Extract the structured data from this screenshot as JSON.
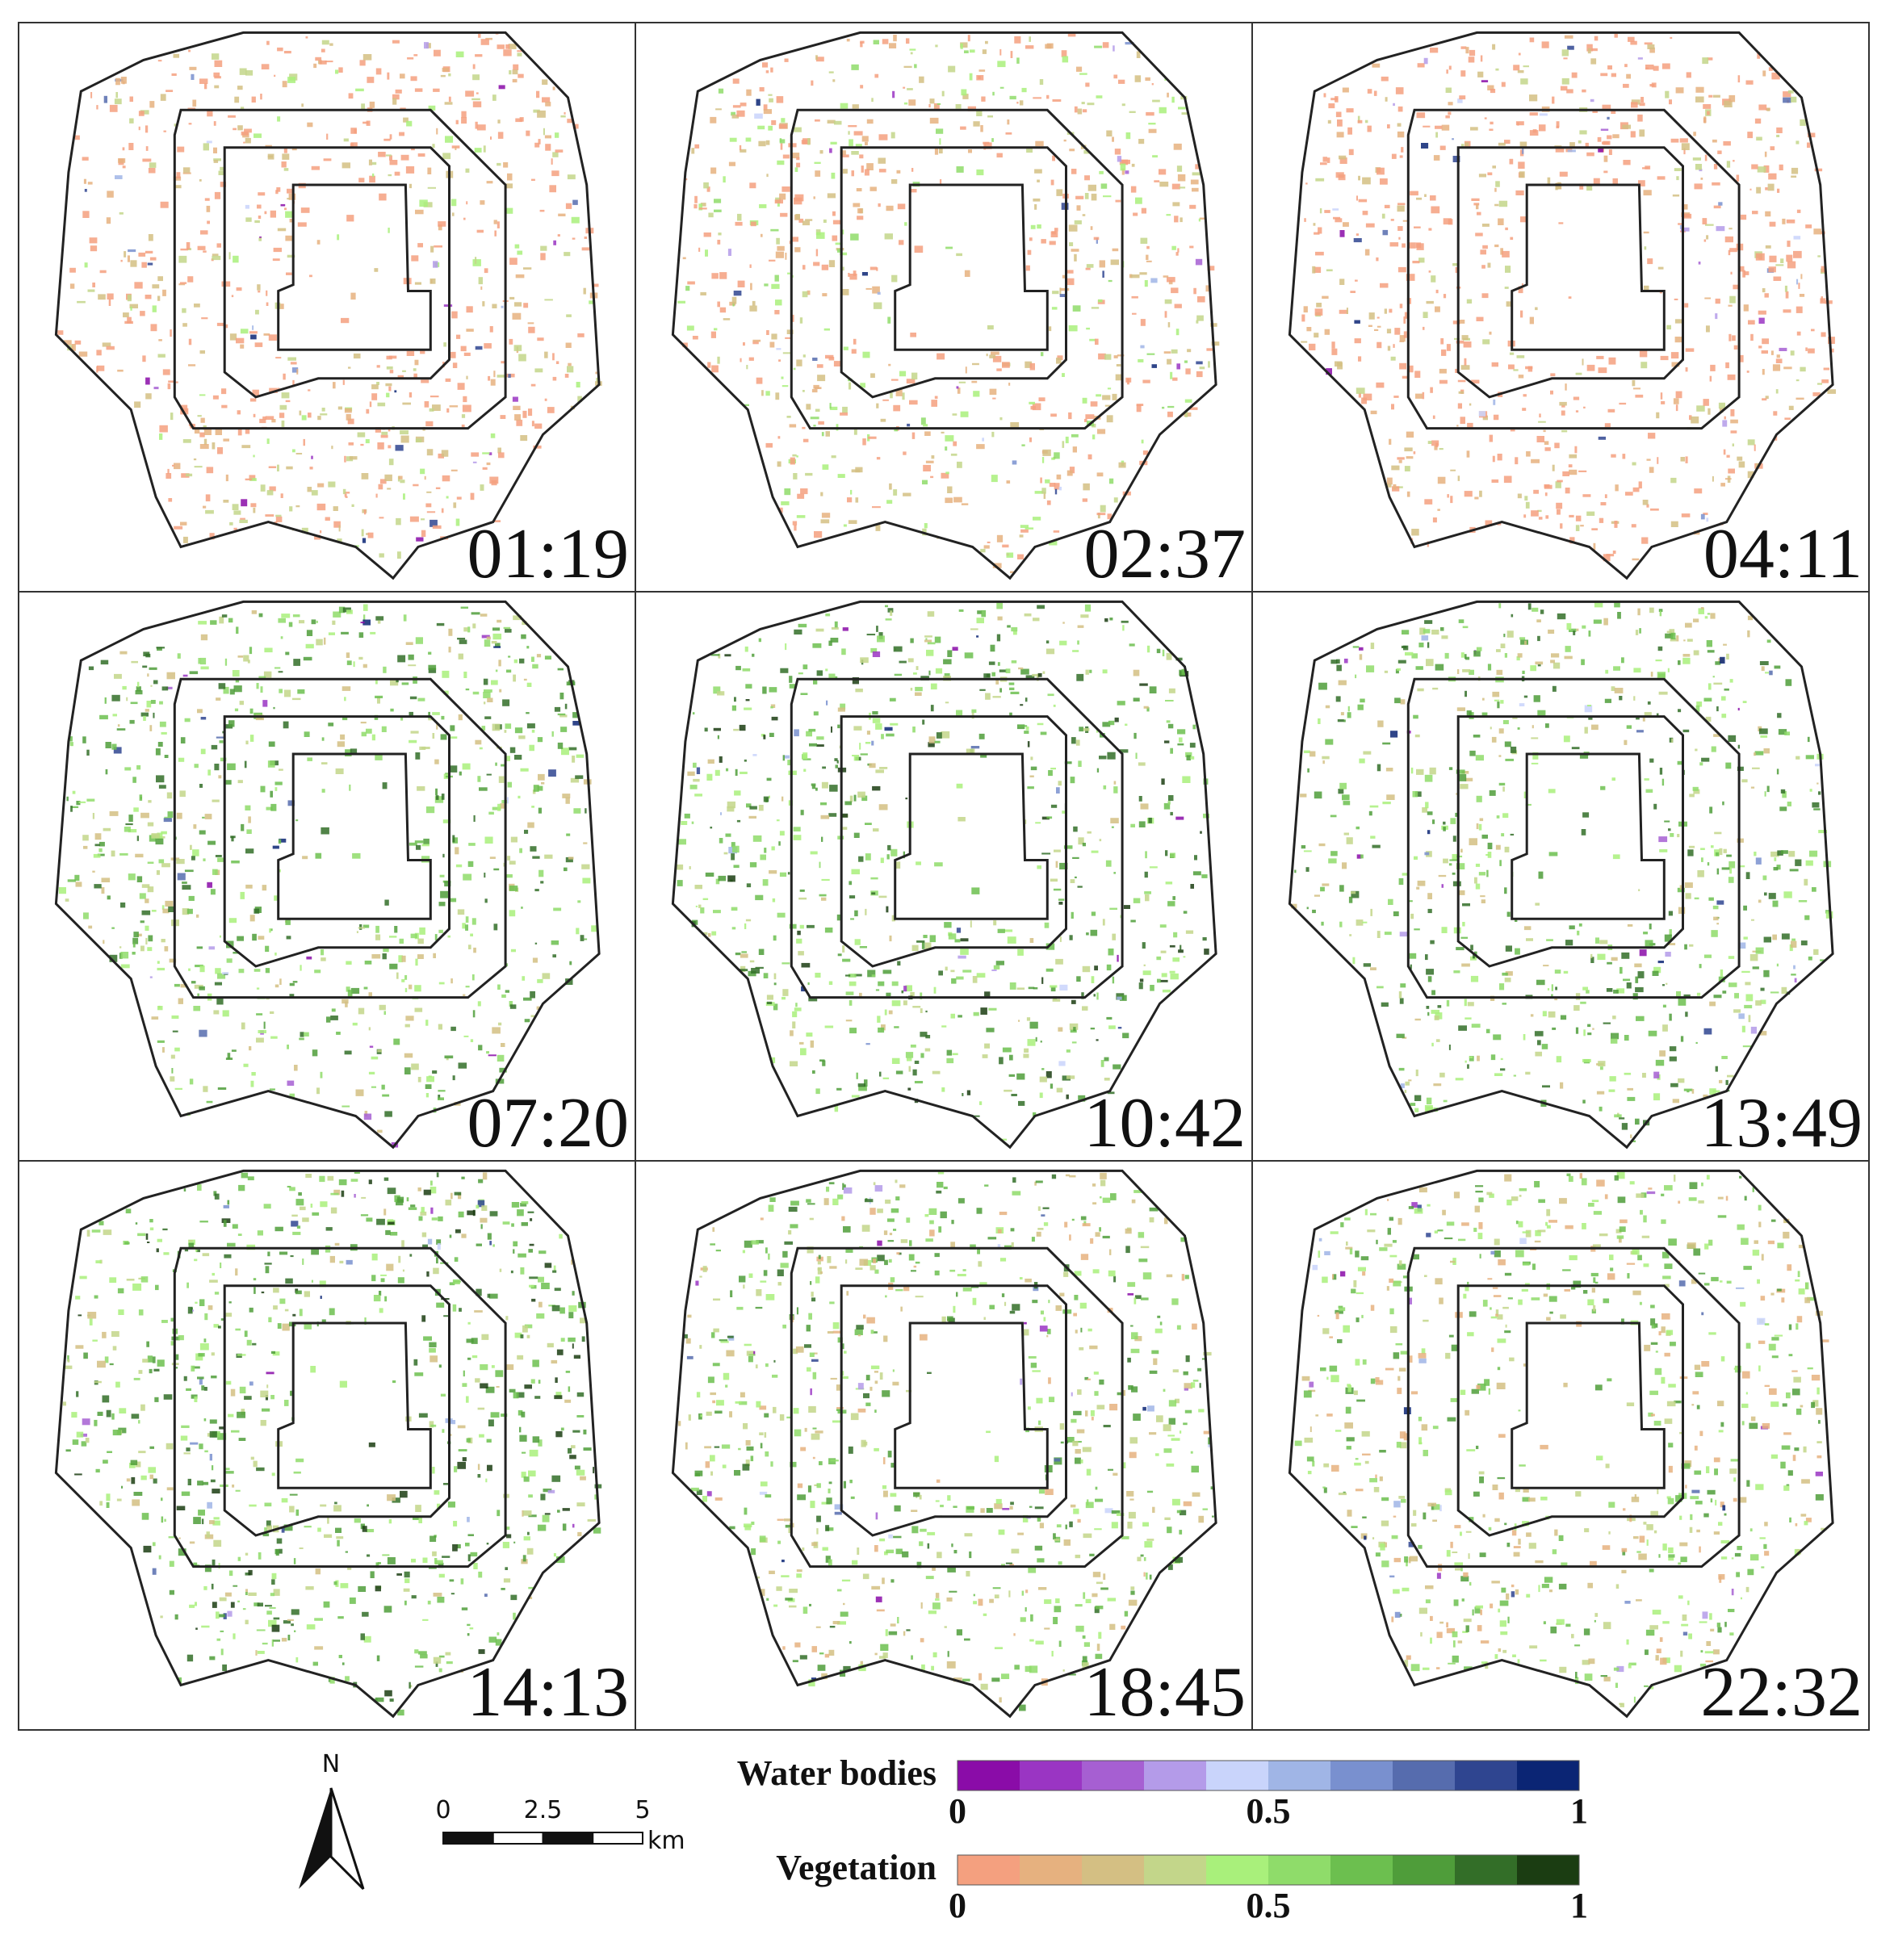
{
  "panels": [
    {
      "time": "01:19"
    },
    {
      "time": "02:37"
    },
    {
      "time": "04:11"
    },
    {
      "time": "07:20"
    },
    {
      "time": "10:42"
    },
    {
      "time": "13:49"
    },
    {
      "time": "14:13"
    },
    {
      "time": "18:45"
    },
    {
      "time": "22:32"
    }
  ],
  "legend": {
    "north": "N",
    "scale_bar": {
      "ticks": [
        0,
        2.5,
        5
      ],
      "unit": "km"
    },
    "ramps": [
      {
        "label": "Water bodies",
        "ticks": [
          0,
          0.5,
          1
        ],
        "colors": [
          "#8a0ca8",
          "#9a35c3",
          "#a65fd2",
          "#b49be9",
          "#c9d4fb",
          "#a0b5e6",
          "#7990cf",
          "#566cae",
          "#2f4590",
          "#0b2574"
        ]
      },
      {
        "label": "Vegetation",
        "ticks": [
          0,
          0.5,
          1
        ],
        "colors": [
          "#f4a07f",
          "#e6b17f",
          "#d4bf83",
          "#c3d68a",
          "#a9f07b",
          "#8fdc6a",
          "#6cbf4f",
          "#4f9d3a",
          "#336e28",
          "#1b3d12"
        ]
      }
    ]
  }
}
